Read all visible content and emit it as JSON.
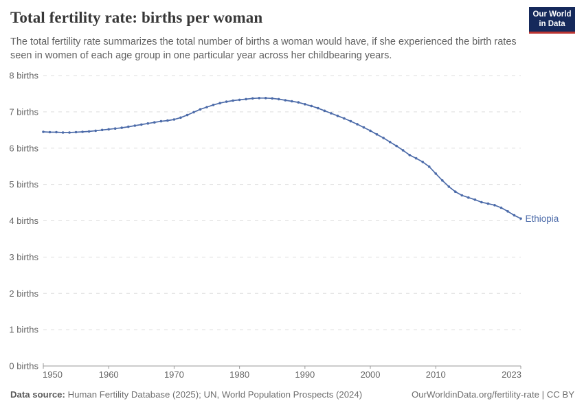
{
  "header": {
    "title": "Total fertility rate: births per woman",
    "subtitle": "The total fertility rate summarizes the total number of births a woman would have, if she experienced the birth rates seen in women of each age group in one particular year across her childbearing years.",
    "logo_line1": "Our World",
    "logo_line2": "in Data"
  },
  "colors": {
    "line": "#4C6BA9",
    "grid": "#DEDEDE",
    "axis": "#999999",
    "tick_text": "#666666",
    "title_text": "#383838",
    "subtitle_text": "#616161",
    "logo_bg": "#15295B",
    "logo_accent": "#BC3532"
  },
  "chart_data": {
    "type": "line",
    "title": "Total fertility rate: births per woman",
    "xlabel": "",
    "ylabel": "births per woman",
    "ylim": [
      0,
      8
    ],
    "xlim": [
      1950,
      2023
    ],
    "grid": true,
    "legend_position": "end-of-line",
    "ytick_labels": [
      "0 births",
      "1 births",
      "2 births",
      "3 births",
      "4 births",
      "5 births",
      "6 births",
      "7 births",
      "8 births"
    ],
    "ytick_values": [
      0,
      1,
      2,
      3,
      4,
      5,
      6,
      7,
      8
    ],
    "xticks": [
      1950,
      1960,
      1970,
      1980,
      1990,
      2000,
      2010,
      2023
    ],
    "series": [
      {
        "name": "Ethiopia",
        "years": [
          1950,
          1951,
          1952,
          1953,
          1954,
          1955,
          1956,
          1957,
          1958,
          1959,
          1960,
          1961,
          1962,
          1963,
          1964,
          1965,
          1966,
          1967,
          1968,
          1969,
          1970,
          1971,
          1972,
          1973,
          1974,
          1975,
          1976,
          1977,
          1978,
          1979,
          1980,
          1981,
          1982,
          1983,
          1984,
          1985,
          1986,
          1987,
          1988,
          1989,
          1990,
          1991,
          1992,
          1993,
          1994,
          1995,
          1996,
          1997,
          1998,
          1999,
          2000,
          2001,
          2002,
          2003,
          2004,
          2005,
          2006,
          2007,
          2008,
          2009,
          2010,
          2011,
          2012,
          2013,
          2014,
          2015,
          2016,
          2017,
          2018,
          2019,
          2020,
          2021,
          2022,
          2023
        ],
        "values": [
          6.45,
          6.44,
          6.44,
          6.43,
          6.43,
          6.44,
          6.45,
          6.46,
          6.48,
          6.5,
          6.52,
          6.54,
          6.56,
          6.59,
          6.62,
          6.65,
          6.68,
          6.71,
          6.74,
          6.76,
          6.79,
          6.84,
          6.91,
          6.99,
          7.07,
          7.13,
          7.19,
          7.24,
          7.28,
          7.31,
          7.33,
          7.35,
          7.37,
          7.38,
          7.38,
          7.37,
          7.35,
          7.32,
          7.29,
          7.26,
          7.21,
          7.16,
          7.1,
          7.03,
          6.96,
          6.89,
          6.82,
          6.74,
          6.66,
          6.57,
          6.48,
          6.38,
          6.28,
          6.17,
          6.06,
          5.94,
          5.81,
          5.72,
          5.62,
          5.49,
          5.3,
          5.11,
          4.94,
          4.8,
          4.7,
          4.64,
          4.58,
          4.51,
          4.47,
          4.43,
          4.36,
          4.26,
          4.15,
          4.06
        ]
      }
    ]
  },
  "footer": {
    "datasource_label": "Data source:",
    "datasource_text": "Human Fertility Database (2025); UN, World Population Prospects (2024)",
    "link_text": "OurWorldinData.org/fertility-rate | CC BY"
  }
}
